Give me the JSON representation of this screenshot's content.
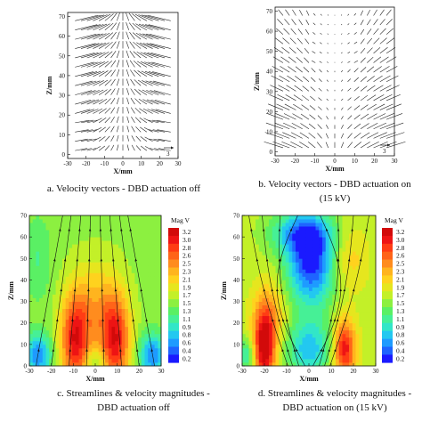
{
  "chart_data": [
    {
      "type": "vector-field",
      "caption_lines": [
        "a.   Velocity vectors - DBD actuation off"
      ],
      "xlabel": "X/mm",
      "ylabel": "Z/mm",
      "xlim": [
        -30,
        30
      ],
      "ylim": [
        -2,
        72
      ],
      "xticks": [
        "-30",
        "-20",
        "-10",
        "0",
        "10",
        "20",
        "30"
      ],
      "yticks": [
        "0",
        "10",
        "20",
        "30",
        "40",
        "50",
        "60",
        "70"
      ],
      "reference_vector_label": "3",
      "field": "converging"
    },
    {
      "type": "vector-field",
      "caption_lines": [
        "b.   Velocity vectors - DBD actuation on",
        "(15 kV)"
      ],
      "xlabel": "X/mm",
      "ylabel": "Z/mm",
      "xlim": [
        -30,
        30
      ],
      "ylim": [
        -2,
        72
      ],
      "xticks": [
        "-30",
        "-20",
        "-10",
        "0",
        "10",
        "20",
        "30"
      ],
      "yticks": [
        "0",
        "10",
        "20",
        "30",
        "40",
        "50",
        "60",
        "70"
      ],
      "reference_vector_label": "3",
      "field": "diverging"
    },
    {
      "type": "heatmap",
      "caption_lines": [
        "c.   Streamlines & velocity magnitudes -",
        "DBD actuation off"
      ],
      "xlabel": "X/mm",
      "ylabel": "Z/mm",
      "xlim": [
        -30,
        30
      ],
      "ylim": [
        0,
        70
      ],
      "xticks": [
        "-30",
        "-20",
        "-10",
        "0",
        "10",
        "20",
        "30"
      ],
      "yticks": [
        "0",
        "10",
        "20",
        "30",
        "40",
        "50",
        "60",
        "70"
      ],
      "legend_title": "Mag V",
      "legend_levels": [
        "3.2",
        "3.0",
        "2.8",
        "2.6",
        "2.5",
        "2.3",
        "2.1",
        "1.9",
        "1.7",
        "1.5",
        "1.3",
        "1.1",
        "0.9",
        "0.8",
        "0.6",
        "0.4",
        "0.2"
      ],
      "field": "off"
    },
    {
      "type": "heatmap",
      "caption_lines": [
        "d.   Streamlines & velocity magnitudes -",
        "DBD actuation on (15 kV)"
      ],
      "xlabel": "X/mm",
      "ylabel": "Z/mm",
      "xlim": [
        -30,
        30
      ],
      "ylim": [
        0,
        70
      ],
      "xticks": [
        "-30",
        "-20",
        "-10",
        "0",
        "10",
        "20",
        "30"
      ],
      "yticks": [
        "0",
        "10",
        "20",
        "30",
        "40",
        "50",
        "60",
        "70"
      ],
      "legend_title": "Mag V",
      "legend_levels": [
        "3.2",
        "3.0",
        "2.8",
        "2.6",
        "2.5",
        "2.3",
        "2.1",
        "1.9",
        "1.7",
        "1.5",
        "1.3",
        "1.1",
        "0.9",
        "0.8",
        "0.6",
        "0.4",
        "0.2"
      ],
      "field": "on"
    }
  ],
  "colors": {
    "scale": [
      "#1a1aff",
      "#1e64ff",
      "#1e9bff",
      "#23c8f0",
      "#32e6c8",
      "#46f096",
      "#5af064",
      "#8cf040",
      "#c3f028",
      "#e6e61e",
      "#ffd21e",
      "#ffb41e",
      "#ff8c1e",
      "#ff6419",
      "#ff3c14",
      "#ee1414",
      "#d20a0a"
    ]
  }
}
